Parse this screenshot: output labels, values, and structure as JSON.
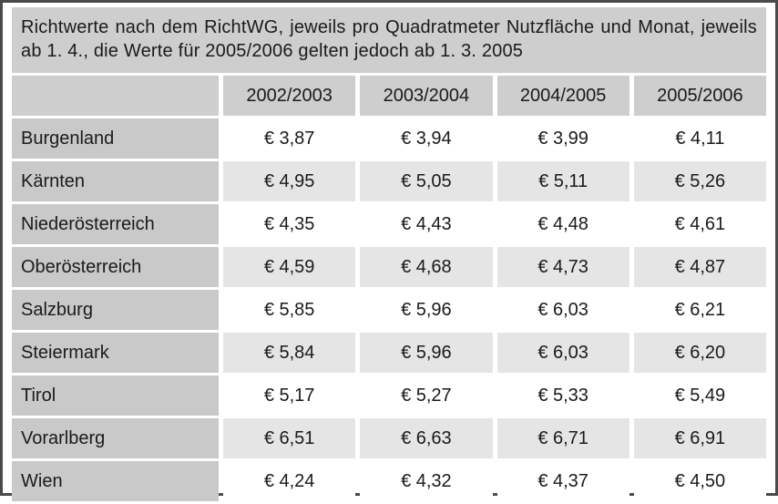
{
  "caption": "Richtwerte nach dem RichtWG, jeweils pro Quadratmeter Nutzfläche und Monat, jeweils ab 1. 4., die Werte für 2005/2006 gelten jedoch ab 1. 3. 2005",
  "chart_data": {
    "type": "table",
    "columns": [
      "2002/2003",
      "2003/2004",
      "2004/2005",
      "2005/2006"
    ],
    "rows": [
      {
        "label": "Burgenland",
        "values": [
          "€ 3,87",
          "€ 3,94",
          "€ 3,99",
          "€ 4,11"
        ]
      },
      {
        "label": "Kärnten",
        "values": [
          "€ 4,95",
          "€ 5,05",
          "€ 5,11",
          "€ 5,26"
        ]
      },
      {
        "label": "Niederösterreich",
        "values": [
          "€ 4,35",
          "€ 4,43",
          "€ 4,48",
          "€ 4,61"
        ]
      },
      {
        "label": "Oberösterreich",
        "values": [
          "€ 4,59",
          "€ 4,68",
          "€ 4,73",
          "€ 4,87"
        ]
      },
      {
        "label": "Salzburg",
        "values": [
          "€ 5,85",
          "€ 5,96",
          "€ 6,03",
          "€ 6,21"
        ]
      },
      {
        "label": "Steiermark",
        "values": [
          "€ 5,84",
          "€ 5,96",
          "€ 6,03",
          "€ 6,20"
        ]
      },
      {
        "label": "Tirol",
        "values": [
          "€ 5,17",
          "€ 5,27",
          "€ 5,33",
          "€ 5,49"
        ]
      },
      {
        "label": "Vorarlberg",
        "values": [
          "€ 6,51",
          "€ 6,63",
          "€ 6,71",
          "€ 6,91"
        ]
      },
      {
        "label": "Wien",
        "values": [
          "€ 4,24",
          "€ 4,32",
          "€ 4,37",
          "€ 4,50"
        ]
      }
    ]
  },
  "colors": {
    "border": "#4a4a4c",
    "caption_bg": "#cecece",
    "header_bg": "#cecece",
    "label_bg": "#c9c9c9",
    "row_bg": "#ffffff",
    "alt_row_bg": "#e5e5e5",
    "text": "#1a1a1a"
  }
}
